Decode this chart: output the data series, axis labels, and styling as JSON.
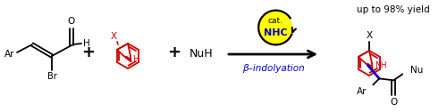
{
  "bg_color": "#ffffff",
  "figsize": [
    5.0,
    1.26
  ],
  "dpi": 100,
  "black": "#000000",
  "red": "#cc0000",
  "blue": "#0000cc",
  "yellow": "#ffff00",
  "arrow_label": "β–indolyation",
  "yield_text": "up to 98% yield",
  "cat_text": "cat.",
  "nhc_text": "NHC"
}
